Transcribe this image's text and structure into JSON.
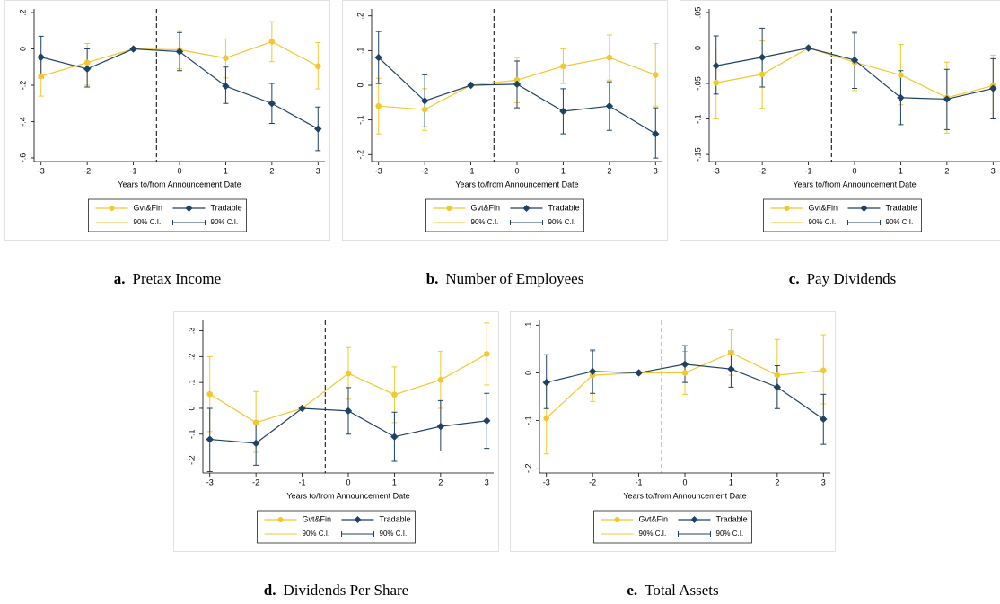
{
  "chart_data": [
    {
      "type": "line",
      "caption_label": "a.",
      "caption": "Pretax Income",
      "x_label": "Years to/from Announcement Date",
      "x": [
        -3,
        -2,
        -1,
        0,
        1,
        2,
        3
      ],
      "xlim": [
        -3.15,
        3.15
      ],
      "xticks": [
        -3,
        -2,
        -1,
        0,
        1,
        2,
        3
      ],
      "ylim": [
        -0.62,
        0.22
      ],
      "yticks": [
        {
          "value": 0.2,
          "label": ".2"
        },
        0,
        {
          "value": -0.2,
          "label": "-.2"
        },
        {
          "value": -0.4,
          "label": "-.4"
        },
        {
          "value": -0.6,
          "label": "-.6"
        }
      ],
      "vline": -0.5,
      "legend": "bottom",
      "series": [
        {
          "name": "Gvt&Fin",
          "ci_name": "90% C.I.",
          "color": "#f2c82e",
          "marker": "circle",
          "values": [
            -0.15,
            -0.075,
            0,
            -0.005,
            -0.05,
            0.04,
            -0.095
          ],
          "ci_low": [
            -0.26,
            -0.2,
            null,
            -0.11,
            -0.16,
            -0.07,
            -0.22
          ],
          "ci_high": [
            -0.04,
            0.03,
            null,
            0.1,
            0.055,
            0.15,
            0.035
          ]
        },
        {
          "name": "Tradable",
          "ci_name": "90% C.I.",
          "color": "#1e4266",
          "marker": "diamond",
          "values": [
            -0.045,
            -0.11,
            0,
            -0.015,
            -0.205,
            -0.3,
            -0.44
          ],
          "ci_low": [
            -0.16,
            -0.21,
            null,
            -0.12,
            -0.3,
            -0.41,
            -0.56
          ],
          "ci_high": [
            0.07,
            0,
            null,
            0.09,
            -0.1,
            -0.19,
            -0.32
          ]
        }
      ]
    },
    {
      "type": "line",
      "caption_label": "b.",
      "caption": "Number of Employees",
      "x_label": "Years to/from Announcement Date",
      "x": [
        -3,
        -2,
        -1,
        0,
        1,
        2,
        3
      ],
      "xlim": [
        -3.15,
        3.15
      ],
      "xticks": [
        -3,
        -2,
        -1,
        0,
        1,
        2,
        3
      ],
      "ylim": [
        -0.22,
        0.22
      ],
      "yticks": [
        {
          "value": 0.2,
          "label": ".2"
        },
        {
          "value": 0.1,
          "label": ".1"
        },
        0,
        {
          "value": -0.1,
          "label": "-.1"
        },
        {
          "value": -0.2,
          "label": "-.2"
        }
      ],
      "vline": -0.5,
      "legend": "bottom",
      "series": [
        {
          "name": "Gvt&Fin",
          "ci_name": "90% C.I.",
          "color": "#f2c82e",
          "marker": "circle",
          "values": [
            -0.06,
            -0.07,
            0,
            0.015,
            0.055,
            0.08,
            0.03
          ],
          "ci_low": [
            -0.14,
            -0.13,
            null,
            -0.05,
            0.005,
            0.015,
            -0.06
          ],
          "ci_high": [
            0.02,
            -0.01,
            null,
            0.08,
            0.105,
            0.145,
            0.12
          ]
        },
        {
          "name": "Tradable",
          "ci_name": "90% C.I.",
          "color": "#1e4266",
          "marker": "diamond",
          "values": [
            0.08,
            -0.045,
            0,
            0.003,
            -0.075,
            -0.06,
            -0.14
          ],
          "ci_low": [
            0.005,
            -0.12,
            null,
            -0.065,
            -0.14,
            -0.13,
            -0.21
          ],
          "ci_high": [
            0.155,
            0.03,
            null,
            0.07,
            -0.01,
            0.01,
            -0.065
          ]
        }
      ]
    },
    {
      "type": "line",
      "caption_label": "c.",
      "caption": "Pay Dividends",
      "x_label": "Years to/from Announcement Date",
      "x": [
        -3,
        -2,
        -1,
        0,
        1,
        2,
        3
      ],
      "xlim": [
        -3.15,
        3.15
      ],
      "xticks": [
        -3,
        -2,
        -1,
        0,
        1,
        2,
        3
      ],
      "ylim": [
        -0.16,
        0.055
      ],
      "yticks": [
        {
          "value": 0.05,
          "label": ".05"
        },
        0,
        {
          "value": -0.05,
          "label": "-.05"
        },
        {
          "value": -0.1,
          "label": "-.1"
        },
        {
          "value": -0.15,
          "label": "-.15"
        }
      ],
      "vline": -0.5,
      "legend": "bottom",
      "series": [
        {
          "name": "Gvt&Fin",
          "ci_name": "90% C.I.",
          "color": "#f2c82e",
          "marker": "circle",
          "values": [
            -0.049,
            -0.037,
            0,
            -0.02,
            -0.038,
            -0.07,
            -0.053
          ],
          "ci_low": [
            -0.1,
            -0.085,
            null,
            -0.06,
            -0.08,
            -0.12,
            -0.1
          ],
          "ci_high": [
            0.0,
            0.01,
            null,
            0.02,
            0.005,
            -0.02,
            -0.01
          ]
        },
        {
          "name": "Tradable",
          "ci_name": "90% C.I.",
          "color": "#1e4266",
          "marker": "diamond",
          "values": [
            -0.025,
            -0.013,
            0,
            -0.017,
            -0.07,
            -0.072,
            -0.057
          ],
          "ci_low": [
            -0.065,
            -0.055,
            null,
            -0.057,
            -0.108,
            -0.115,
            -0.1
          ],
          "ci_high": [
            0.017,
            0.028,
            null,
            0.022,
            -0.032,
            -0.03,
            -0.015
          ]
        }
      ]
    },
    {
      "type": "line",
      "caption_label": "d.",
      "caption": "Dividends Per Share",
      "x_label": "Years to/from Announcement Date",
      "x": [
        -3,
        -2,
        -1,
        0,
        1,
        2,
        3
      ],
      "xlim": [
        -3.15,
        3.15
      ],
      "xticks": [
        -3,
        -2,
        -1,
        0,
        1,
        2,
        3
      ],
      "ylim": [
        -0.25,
        0.34
      ],
      "yticks": [
        {
          "value": 0.3,
          "label": ".3"
        },
        {
          "value": 0.2,
          "label": ".2"
        },
        {
          "value": 0.1,
          "label": ".1"
        },
        0,
        {
          "value": -0.1,
          "label": "-.1"
        },
        {
          "value": -0.2,
          "label": "-.2"
        }
      ],
      "vline": -0.5,
      "legend": "bottom",
      "series": [
        {
          "name": "Gvt&Fin",
          "ci_name": "90% C.I.",
          "color": "#f2c82e",
          "marker": "circle",
          "values": [
            0.055,
            -0.055,
            0,
            0.135,
            0.053,
            0.11,
            0.21
          ],
          "ci_low": [
            -0.09,
            -0.17,
            null,
            0.035,
            -0.055,
            0.0,
            0.09
          ],
          "ci_high": [
            0.2,
            0.065,
            null,
            0.235,
            0.16,
            0.22,
            0.33
          ]
        },
        {
          "name": "Tradable",
          "ci_name": "90% C.I.",
          "color": "#1e4266",
          "marker": "diamond",
          "values": [
            -0.12,
            -0.135,
            0,
            -0.01,
            -0.11,
            -0.07,
            -0.048
          ],
          "ci_low": [
            -0.245,
            -0.22,
            null,
            -0.1,
            -0.205,
            -0.165,
            -0.155
          ],
          "ci_high": [
            0.0,
            -0.05,
            null,
            0.08,
            -0.015,
            0.03,
            0.058
          ]
        }
      ]
    },
    {
      "type": "line",
      "caption_label": "e.",
      "caption": "Total Assets",
      "x_label": "Years to/from Announcement Date",
      "x": [
        -3,
        -2,
        -1,
        0,
        1,
        2,
        3
      ],
      "xlim": [
        -3.15,
        3.15
      ],
      "xticks": [
        -3,
        -2,
        -1,
        0,
        1,
        2,
        3
      ],
      "ylim": [
        -0.21,
        0.11
      ],
      "yticks": [
        {
          "value": 0.1,
          "label": ".1"
        },
        0,
        {
          "value": -0.1,
          "label": "-.1"
        },
        {
          "value": -0.2,
          "label": "-.2"
        }
      ],
      "vline": -0.5,
      "legend": "bottom",
      "series": [
        {
          "name": "Gvt&Fin",
          "ci_name": "90% C.I.",
          "color": "#f2c82e",
          "marker": "circle",
          "values": [
            -0.095,
            -0.005,
            0,
            0,
            0.042,
            -0.005,
            0.005
          ],
          "ci_low": [
            -0.17,
            -0.06,
            null,
            -0.045,
            -0.005,
            -0.075,
            -0.065
          ],
          "ci_high": [
            -0.02,
            0.045,
            null,
            0.045,
            0.09,
            0.07,
            0.08
          ]
        },
        {
          "name": "Tradable",
          "ci_name": "90% C.I.",
          "color": "#1e4266",
          "marker": "diamond",
          "values": [
            -0.02,
            0.003,
            0,
            0.018,
            0.008,
            -0.03,
            -0.097
          ],
          "ci_low": [
            -0.075,
            -0.043,
            null,
            -0.02,
            -0.03,
            -0.075,
            -0.15
          ],
          "ci_high": [
            0.038,
            0.048,
            null,
            0.057,
            0.046,
            0.015,
            -0.045
          ]
        }
      ]
    }
  ]
}
